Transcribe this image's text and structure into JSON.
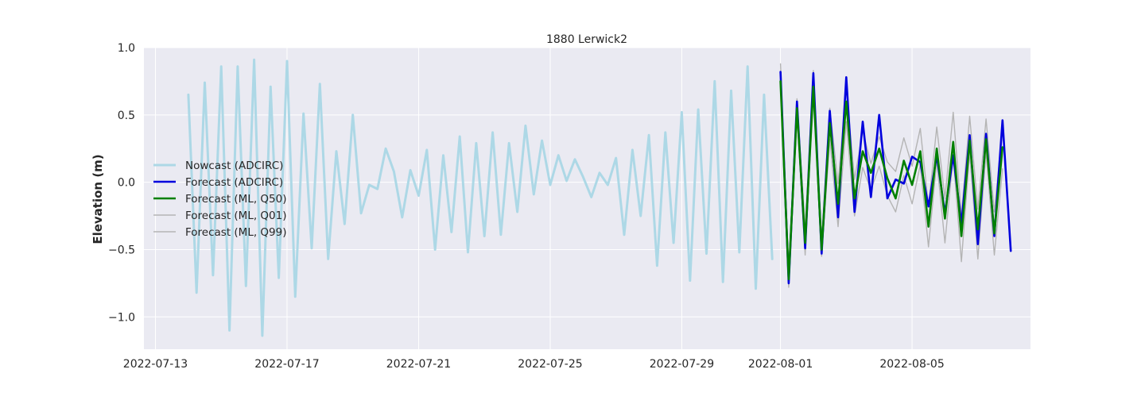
{
  "chart_data": {
    "type": "line",
    "title": "1880 Lerwick2",
    "xlabel": "",
    "ylabel": "Elevation (m)",
    "x_unit": "days since 2022-07-13",
    "xlim": [
      -0.35,
      26.6
    ],
    "ylim": [
      -1.24,
      1.0
    ],
    "x_ticks": [
      {
        "value": 0,
        "label": "2022-07-13"
      },
      {
        "value": 4,
        "label": "2022-07-17"
      },
      {
        "value": 8,
        "label": "2022-07-21"
      },
      {
        "value": 12,
        "label": "2022-07-25"
      },
      {
        "value": 16,
        "label": "2022-07-29"
      },
      {
        "value": 19,
        "label": "2022-08-01"
      },
      {
        "value": 23,
        "label": "2022-08-05"
      }
    ],
    "y_ticks": [
      {
        "value": 1.0,
        "label": "1.0"
      },
      {
        "value": 0.5,
        "label": "0.5"
      },
      {
        "value": 0.0,
        "label": "0.0"
      },
      {
        "value": -0.5,
        "label": "−0.5"
      },
      {
        "value": -1.0,
        "label": "−1.0"
      }
    ],
    "grid": true,
    "legend_position": "center-left",
    "series": [
      {
        "name": "Nowcast (ADCIRC)",
        "color": "#add8e6",
        "width": 3,
        "x_start": 1.0,
        "x_step": 0.25,
        "values": [
          0.65,
          -0.82,
          0.74,
          -0.69,
          0.86,
          -1.1,
          0.86,
          -0.77,
          0.91,
          -1.14,
          0.71,
          -0.71,
          0.9,
          -0.85,
          0.51,
          -0.49,
          0.73,
          -0.57,
          0.23,
          -0.31,
          0.5,
          -0.23,
          -0.02,
          -0.05,
          0.25,
          0.08,
          -0.26,
          0.09,
          -0.1,
          0.24,
          -0.5,
          0.2,
          -0.37,
          0.34,
          -0.52,
          0.29,
          -0.4,
          0.37,
          -0.39,
          0.29,
          -0.22,
          0.42,
          -0.09,
          0.31,
          -0.02,
          0.2,
          0.01,
          0.17,
          0.04,
          -0.11,
          0.07,
          -0.02,
          0.18,
          -0.39,
          0.24,
          -0.25,
          0.35,
          -0.62,
          0.37,
          -0.45,
          0.52,
          -0.73,
          0.54,
          -0.53,
          0.75,
          -0.74,
          0.68,
          -0.52,
          0.86,
          -0.79,
          0.65,
          -0.57
        ]
      },
      {
        "name": "Forecast (ADCIRC)",
        "color": "#0000dd",
        "width": 2.6,
        "x_start": 19.0,
        "x_step": 0.25,
        "values": [
          0.82,
          -0.75,
          0.6,
          -0.49,
          0.81,
          -0.53,
          0.53,
          -0.26,
          0.78,
          -0.22,
          0.45,
          -0.11,
          0.5,
          -0.12,
          0.02,
          -0.01,
          0.19,
          0.15,
          -0.18,
          0.2,
          -0.23,
          0.2,
          -0.31,
          0.35,
          -0.46,
          0.36,
          -0.4,
          0.46,
          -0.51
        ]
      },
      {
        "name": "Forecast (ML, Q50)",
        "color": "#008000",
        "width": 2.6,
        "x_start": 19.0,
        "x_step": 0.25,
        "values": [
          0.75,
          -0.72,
          0.55,
          -0.45,
          0.71,
          -0.5,
          0.44,
          -0.16,
          0.6,
          -0.12,
          0.23,
          0.07,
          0.25,
          0.03,
          -0.12,
          0.16,
          -0.02,
          0.23,
          -0.33,
          0.25,
          -0.27,
          0.3,
          -0.4,
          0.31,
          -0.35,
          0.32,
          -0.38,
          0.26
        ]
      },
      {
        "name": "Forecast (ML, Q01)",
        "color": "#b4b4b4",
        "width": 1.4,
        "x_start": 19.0,
        "x_step": 0.25,
        "values": [
          0.72,
          -0.78,
          0.5,
          -0.54,
          0.65,
          -0.55,
          0.32,
          -0.33,
          0.45,
          -0.25,
          0.11,
          -0.06,
          0.12,
          -0.1,
          -0.22,
          0.05,
          -0.16,
          0.13,
          -0.48,
          0.16,
          -0.45,
          0.2,
          -0.59,
          0.22,
          -0.57,
          0.23,
          -0.54,
          0.1
        ]
      },
      {
        "name": "Forecast (ML, Q99)",
        "color": "#b4b4b4",
        "width": 1.4,
        "x_start": 19.0,
        "x_step": 0.25,
        "values": [
          0.88,
          -0.64,
          0.62,
          -0.35,
          0.83,
          -0.42,
          0.55,
          -0.01,
          0.7,
          0.02,
          0.38,
          0.14,
          0.34,
          0.15,
          0.08,
          0.33,
          0.12,
          0.4,
          -0.18,
          0.41,
          -0.12,
          0.52,
          -0.25,
          0.49,
          -0.2,
          0.47,
          -0.22,
          0.39
        ]
      }
    ]
  }
}
